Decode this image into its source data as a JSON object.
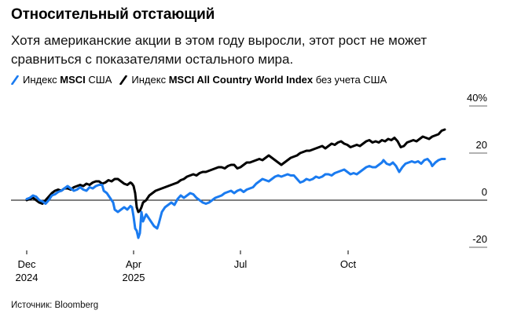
{
  "header": {
    "title": "Относительный отстающий",
    "subtitle": "Хотя американские акции в этом году выросли, этот рост не может сравниться с показателями остального мира."
  },
  "legend": {
    "items": [
      {
        "prefix": "Индекс ",
        "bold": "MSCI",
        "suffix": " США",
        "color": "#1a7bf0"
      },
      {
        "prefix": "Индекс ",
        "bold": "MSCI All Country World Index",
        "suffix": " без учета США",
        "color": "#000000"
      }
    ]
  },
  "footer": {
    "source": "Источник: Bloomberg"
  },
  "chart_data": {
    "type": "line",
    "title": "Относительный отстающий",
    "subtitle": "Хотя американские акции в этом году выросли, этот рост не может сравниться с показателями остального мира.",
    "xlabel": "",
    "ylabel": "",
    "ylim": [
      -20,
      40
    ],
    "y_ticks": [
      {
        "value": 40,
        "label": "40%"
      },
      {
        "value": 20,
        "label": "20"
      },
      {
        "value": 0,
        "label": "0"
      },
      {
        "value": -20,
        "label": "-20"
      }
    ],
    "x_ticks": [
      {
        "label": "Dec",
        "sublabel": "2024"
      },
      {
        "label": "Apr",
        "sublabel": "2025"
      },
      {
        "label": "Jul",
        "sublabel": ""
      },
      {
        "label": "Oct",
        "sublabel": ""
      }
    ],
    "x_range": [
      "2024-12",
      "2025-12"
    ],
    "grid": false,
    "zero_line": true,
    "legend_position": "top-left",
    "series": [
      {
        "name": "Индекс MSCI США",
        "color": "#1a7bf0",
        "points": [
          [
            34,
            0.5
          ],
          [
            38,
            1
          ],
          [
            42,
            2
          ],
          [
            46,
            1.5
          ],
          [
            50,
            0
          ],
          [
            54,
            -0.5
          ],
          [
            58,
            -1.5
          ],
          [
            62,
            0
          ],
          [
            66,
            2
          ],
          [
            70,
            2.5
          ],
          [
            74,
            3.5
          ],
          [
            78,
            4
          ],
          [
            82,
            5
          ],
          [
            86,
            6
          ],
          [
            90,
            5
          ],
          [
            94,
            4
          ],
          [
            98,
            4.5
          ],
          [
            102,
            5.5
          ],
          [
            106,
            4.5
          ],
          [
            110,
            4
          ],
          [
            114,
            5.5
          ],
          [
            118,
            5
          ],
          [
            122,
            6
          ],
          [
            126,
            6.5
          ],
          [
            130,
            6.5
          ],
          [
            132,
            4
          ],
          [
            136,
            3
          ],
          [
            140,
            1
          ],
          [
            144,
            -1
          ],
          [
            146,
            -4
          ],
          [
            150,
            -5
          ],
          [
            154,
            -4
          ],
          [
            158,
            -3
          ],
          [
            162,
            -4
          ],
          [
            166,
            -2.5
          ],
          [
            168,
            -3
          ],
          [
            170,
            -7
          ],
          [
            172,
            -12
          ],
          [
            174,
            -13
          ],
          [
            176,
            -16
          ],
          [
            178,
            -14
          ],
          [
            180,
            -5
          ],
          [
            182,
            -9
          ],
          [
            186,
            -6
          ],
          [
            188,
            -7
          ],
          [
            192,
            -9
          ],
          [
            196,
            -11
          ],
          [
            200,
            -12
          ],
          [
            202,
            -10
          ],
          [
            206,
            -5
          ],
          [
            210,
            -3
          ],
          [
            214,
            -2
          ],
          [
            218,
            -1
          ],
          [
            222,
            -2
          ],
          [
            226,
            0.5
          ],
          [
            230,
            2
          ],
          [
            234,
            1
          ],
          [
            238,
            2
          ],
          [
            242,
            3
          ],
          [
            246,
            2.5
          ],
          [
            250,
            1
          ],
          [
            254,
            0
          ],
          [
            258,
            -1
          ],
          [
            262,
            -1.5
          ],
          [
            266,
            -1
          ],
          [
            270,
            0
          ],
          [
            274,
            1
          ],
          [
            278,
            1.5
          ],
          [
            282,
            2
          ],
          [
            286,
            3
          ],
          [
            290,
            3.5
          ],
          [
            294,
            4
          ],
          [
            298,
            3
          ],
          [
            302,
            4
          ],
          [
            306,
            4.5
          ],
          [
            310,
            3.5
          ],
          [
            314,
            4.5
          ],
          [
            318,
            5
          ],
          [
            322,
            5.5
          ],
          [
            326,
            7
          ],
          [
            330,
            8
          ],
          [
            334,
            9
          ],
          [
            338,
            8.5
          ],
          [
            342,
            8
          ],
          [
            346,
            9
          ],
          [
            350,
            10
          ],
          [
            354,
            10.5
          ],
          [
            358,
            10
          ],
          [
            362,
            10.5
          ],
          [
            366,
            11
          ],
          [
            370,
            10.5
          ],
          [
            374,
            10.5
          ],
          [
            378,
            9
          ],
          [
            382,
            7.5
          ],
          [
            386,
            8
          ],
          [
            390,
            9
          ],
          [
            394,
            8.5
          ],
          [
            398,
            9
          ],
          [
            402,
            10
          ],
          [
            406,
            9.5
          ],
          [
            410,
            10
          ],
          [
            414,
            11
          ],
          [
            418,
            11
          ],
          [
            422,
            10.5
          ],
          [
            426,
            11.5
          ],
          [
            430,
            12
          ],
          [
            434,
            12.5
          ],
          [
            438,
            13
          ],
          [
            442,
            12
          ],
          [
            446,
            11
          ],
          [
            450,
            11.5
          ],
          [
            454,
            11
          ],
          [
            458,
            12
          ],
          [
            462,
            13
          ],
          [
            466,
            14
          ],
          [
            470,
            14.5
          ],
          [
            474,
            14
          ],
          [
            478,
            14
          ],
          [
            482,
            15
          ],
          [
            486,
            16
          ],
          [
            488,
            17
          ],
          [
            492,
            15.5
          ],
          [
            496,
            15
          ],
          [
            500,
            16
          ],
          [
            504,
            14.5
          ],
          [
            508,
            12
          ],
          [
            512,
            14
          ],
          [
            516,
            15.5
          ],
          [
            520,
            16
          ],
          [
            524,
            16.5
          ],
          [
            528,
            16
          ],
          [
            532,
            16.5
          ],
          [
            536,
            15.5
          ],
          [
            540,
            17
          ],
          [
            544,
            17.5
          ],
          [
            548,
            16
          ],
          [
            550,
            14.5
          ],
          [
            554,
            16
          ],
          [
            558,
            17
          ],
          [
            562,
            17.5
          ],
          [
            566,
            17.5
          ]
        ]
      },
      {
        "name": "Индекс MSCI All Country World Index без учета США",
        "color": "#000000",
        "points": [
          [
            34,
            0
          ],
          [
            38,
            0.5
          ],
          [
            42,
            1
          ],
          [
            46,
            0
          ],
          [
            50,
            -1
          ],
          [
            54,
            -1.5
          ],
          [
            58,
            0
          ],
          [
            62,
            1.5
          ],
          [
            66,
            3
          ],
          [
            70,
            4
          ],
          [
            74,
            4.5
          ],
          [
            78,
            4
          ],
          [
            82,
            5
          ],
          [
            86,
            5
          ],
          [
            90,
            4.5
          ],
          [
            94,
            5.5
          ],
          [
            98,
            6
          ],
          [
            102,
            6.5
          ],
          [
            106,
            6
          ],
          [
            110,
            7
          ],
          [
            114,
            6.5
          ],
          [
            118,
            7.5
          ],
          [
            122,
            8
          ],
          [
            126,
            8
          ],
          [
            130,
            7
          ],
          [
            134,
            7.5
          ],
          [
            138,
            8.5
          ],
          [
            142,
            8
          ],
          [
            146,
            9
          ],
          [
            150,
            9
          ],
          [
            154,
            8
          ],
          [
            158,
            7
          ],
          [
            162,
            6.5
          ],
          [
            166,
            7.5
          ],
          [
            168,
            7
          ],
          [
            170,
            6
          ],
          [
            172,
            3
          ],
          [
            174,
            -3
          ],
          [
            176,
            -5
          ],
          [
            178,
            -4.5
          ],
          [
            180,
            -3
          ],
          [
            182,
            -1
          ],
          [
            186,
            0
          ],
          [
            190,
            2
          ],
          [
            194,
            3
          ],
          [
            198,
            4
          ],
          [
            202,
            4.5
          ],
          [
            206,
            5
          ],
          [
            210,
            5.5
          ],
          [
            214,
            6
          ],
          [
            218,
            6.5
          ],
          [
            222,
            7
          ],
          [
            226,
            7.5
          ],
          [
            230,
            8.5
          ],
          [
            234,
            9
          ],
          [
            238,
            10
          ],
          [
            242,
            10.5
          ],
          [
            246,
            11
          ],
          [
            250,
            10.5
          ],
          [
            254,
            11.5
          ],
          [
            258,
            12
          ],
          [
            262,
            12
          ],
          [
            266,
            12.5
          ],
          [
            270,
            13
          ],
          [
            274,
            13.5
          ],
          [
            278,
            14
          ],
          [
            282,
            14
          ],
          [
            286,
            13.5
          ],
          [
            290,
            14.5
          ],
          [
            294,
            15
          ],
          [
            298,
            15
          ],
          [
            302,
            13.5
          ],
          [
            306,
            14
          ],
          [
            310,
            15
          ],
          [
            314,
            16
          ],
          [
            318,
            16
          ],
          [
            322,
            16.5
          ],
          [
            326,
            17
          ],
          [
            330,
            17.5
          ],
          [
            334,
            17
          ],
          [
            338,
            18
          ],
          [
            342,
            19
          ],
          [
            346,
            18
          ],
          [
            350,
            17
          ],
          [
            354,
            16
          ],
          [
            358,
            15
          ],
          [
            362,
            16
          ],
          [
            366,
            17
          ],
          [
            370,
            18
          ],
          [
            374,
            18.5
          ],
          [
            378,
            19
          ],
          [
            382,
            20
          ],
          [
            386,
            20.5
          ],
          [
            390,
            21
          ],
          [
            394,
            21
          ],
          [
            398,
            21.5
          ],
          [
            402,
            22
          ],
          [
            406,
            22.5
          ],
          [
            410,
            23
          ],
          [
            414,
            22
          ],
          [
            418,
            23
          ],
          [
            422,
            24
          ],
          [
            426,
            23.5
          ],
          [
            430,
            24.5
          ],
          [
            434,
            25
          ],
          [
            438,
            24
          ],
          [
            442,
            23.5
          ],
          [
            446,
            22.5
          ],
          [
            450,
            23
          ],
          [
            454,
            23.5
          ],
          [
            458,
            23
          ],
          [
            462,
            24
          ],
          [
            466,
            25
          ],
          [
            470,
            25.5
          ],
          [
            474,
            24.5
          ],
          [
            478,
            25
          ],
          [
            482,
            24.5
          ],
          [
            486,
            25.5
          ],
          [
            490,
            25
          ],
          [
            494,
            26
          ],
          [
            498,
            25.5
          ],
          [
            502,
            26.5
          ],
          [
            506,
            25
          ],
          [
            510,
            22.5
          ],
          [
            514,
            23
          ],
          [
            518,
            24.5
          ],
          [
            522,
            25
          ],
          [
            526,
            25.5
          ],
          [
            530,
            25
          ],
          [
            534,
            26
          ],
          [
            538,
            27
          ],
          [
            542,
            26.5
          ],
          [
            546,
            26
          ],
          [
            550,
            27
          ],
          [
            554,
            27.5
          ],
          [
            558,
            28
          ],
          [
            562,
            29.5
          ],
          [
            566,
            30
          ]
        ]
      }
    ]
  }
}
